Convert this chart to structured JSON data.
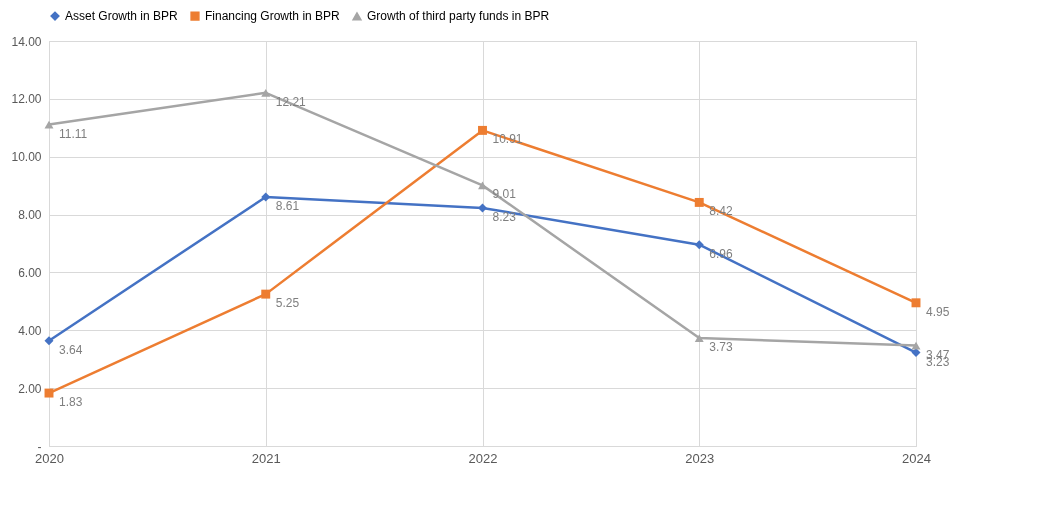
{
  "chart_data": {
    "type": "line",
    "categories": [
      "2020",
      "2021",
      "2022",
      "2023",
      "2024"
    ],
    "series": [
      {
        "name": "Asset Growth in BPR",
        "color": "#4472c4",
        "marker": "diamond",
        "values": [
          3.64,
          8.61,
          8.23,
          6.96,
          3.23
        ]
      },
      {
        "name": "Financing Growth in BPR",
        "color": "#ed7d31",
        "marker": "square",
        "values": [
          1.83,
          5.25,
          10.91,
          8.42,
          4.95
        ]
      },
      {
        "name": "Growth of third party funds in BPR",
        "color": "#a5a5a5",
        "marker": "triangle",
        "values": [
          11.11,
          12.21,
          9.01,
          3.73,
          3.47
        ]
      }
    ],
    "ylim": [
      0,
      14
    ],
    "yticks": [
      {
        "value": 0,
        "label": "-"
      },
      {
        "value": 2,
        "label": "2.00"
      },
      {
        "value": 4,
        "label": "4.00"
      },
      {
        "value": 6,
        "label": "6.00"
      },
      {
        "value": 8,
        "label": "8.00"
      },
      {
        "value": 10,
        "label": "10.00"
      },
      {
        "value": 12,
        "label": "12.00"
      },
      {
        "value": 14,
        "label": "14.00"
      }
    ],
    "grid": true,
    "legend": "top",
    "data_labels": true,
    "line_style": "solid"
  }
}
